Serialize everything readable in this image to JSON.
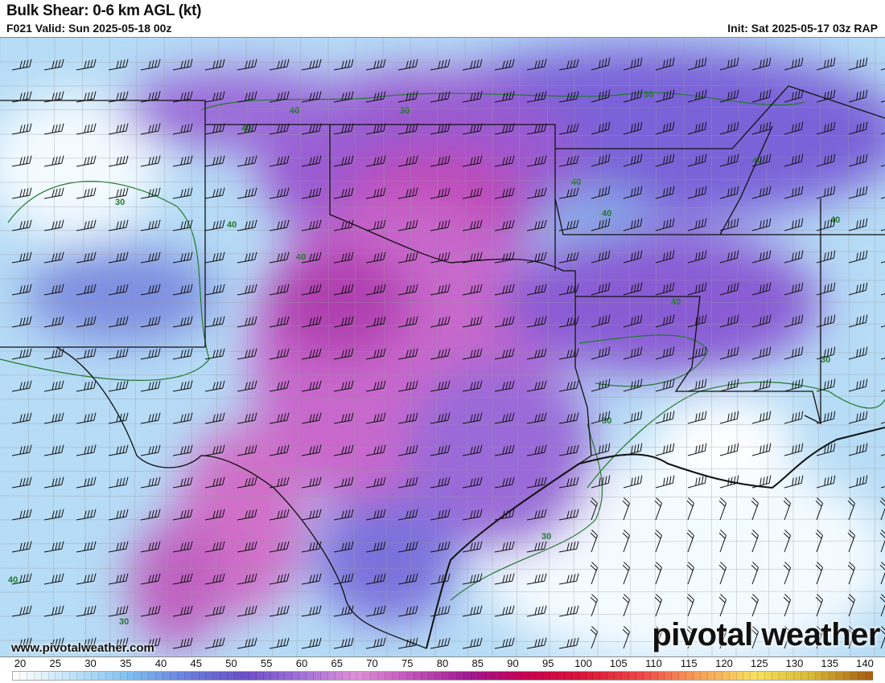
{
  "header": {
    "title": "Bulk Shear: 0-6 km AGL (kt)",
    "valid": "F021 Valid: Sun 2025-05-18 00z",
    "init": "Init: Sat 2025-05-17 03z RAP"
  },
  "map": {
    "contour_labels": [
      "30",
      "40",
      "40",
      "30",
      "30",
      "40",
      "40",
      "40",
      "40",
      "40",
      "40",
      "40",
      "30",
      "30",
      "30",
      "40",
      "30"
    ],
    "contour_color": "#1f7a2a",
    "border_color": "#111111"
  },
  "footer": {
    "website": "www.pivotalweather.com",
    "logo": "pivotal weather"
  },
  "colorbar": {
    "ticks": [
      "20",
      "25",
      "30",
      "35",
      "40",
      "45",
      "50",
      "55",
      "60",
      "65",
      "70",
      "75",
      "80",
      "85",
      "90",
      "95",
      "100",
      "105",
      "110",
      "115",
      "120",
      "125",
      "130",
      "135",
      "140"
    ],
    "stops": [
      "#ffffff",
      "#bfe3f8",
      "#7fbff0",
      "#6a7fdc",
      "#6a4fc8",
      "#a070d8",
      "#e090d8",
      "#c050b8",
      "#a01890",
      "#c80050",
      "#d81838",
      "#ec4848",
      "#f8a058",
      "#f8e060",
      "#d8b838",
      "#a86010"
    ]
  }
}
